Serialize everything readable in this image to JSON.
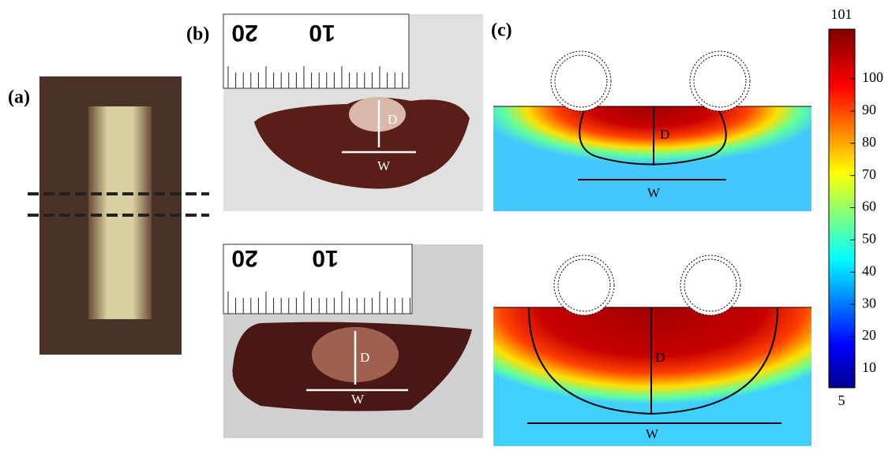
{
  "panels": {
    "a": {
      "label": "(a)"
    },
    "b": {
      "label": "(b)",
      "photos": [
        {
          "ruler_labels": [
            "20",
            "10"
          ],
          "depth": "D",
          "width": "W"
        },
        {
          "ruler_labels": [
            "20",
            "10"
          ],
          "depth": "D",
          "width": "W"
        }
      ]
    },
    "c": {
      "label": "(c)",
      "simulations": [
        {
          "depth": "D",
          "width": "W"
        },
        {
          "depth": "D",
          "width": "W"
        }
      ]
    }
  },
  "colorbar": {
    "max_label": "101",
    "min_label": "5",
    "ticks": [
      10,
      20,
      30,
      40,
      50,
      60,
      70,
      80,
      90,
      100
    ]
  }
}
